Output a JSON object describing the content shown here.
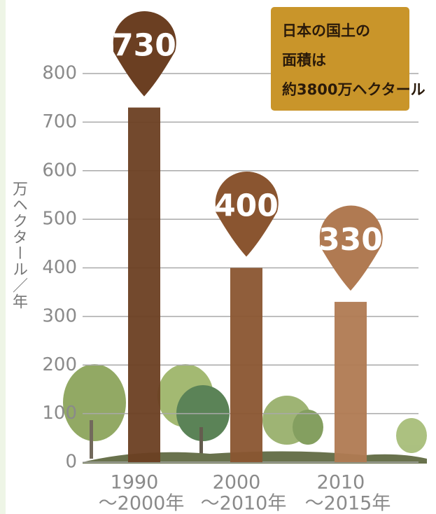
{
  "chart_data": {
    "type": "bar",
    "y_label": "万ヘクタール／年",
    "annotation": [
      "日本の国土の",
      "面積は",
      "約3800万ヘクタール"
    ],
    "categories": [
      [
        "1990",
        "〜2000年"
      ],
      [
        "2000",
        "〜2010年"
      ],
      [
        "2010",
        "〜2015年"
      ]
    ],
    "values": [
      730,
      400,
      330
    ],
    "colors": [
      "#6b3f22",
      "#8a5530",
      "#b07a52"
    ],
    "ylim": [
      0,
      800
    ],
    "yticks": [
      0,
      100,
      200,
      300,
      400,
      500,
      600,
      700,
      800
    ],
    "grid": true
  }
}
